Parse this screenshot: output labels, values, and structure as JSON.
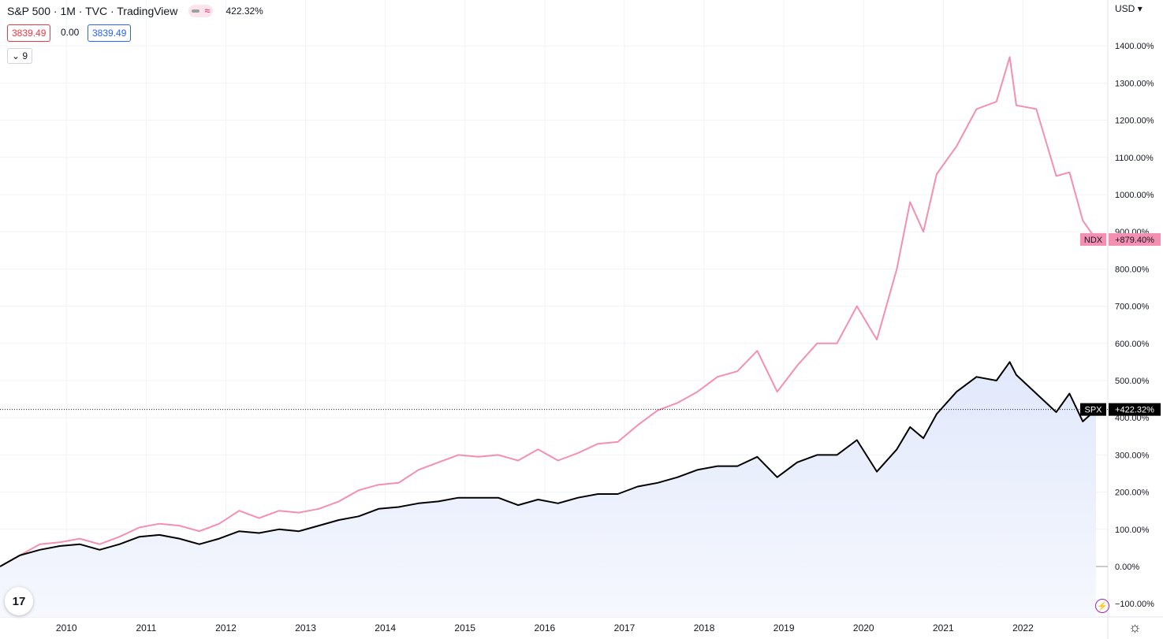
{
  "header": {
    "title": "S&P 500 · 1M · TVC · TradingView",
    "percent": "422.32%"
  },
  "prices": {
    "sell": "3839.49",
    "change": "0.00",
    "buy": "3839.49"
  },
  "indicators": {
    "count": "9"
  },
  "axis": {
    "currency": "USD",
    "currency_arrow": "▾"
  },
  "icons": {
    "logo": "tv-logo-icon",
    "bolt": "bolt-icon",
    "settings": "gear-icon",
    "collapse": "chevron-down-icon",
    "compare": "wave-icon"
  },
  "labels": {
    "ndx_tag": "NDX",
    "ndx_value": "+879.40%",
    "spx_tag": "SPX",
    "spx_value": "+422.32%"
  },
  "colors": {
    "ndx": "#f48fb1",
    "ndx_label_bg": "#f48fb1",
    "spx": "#000000",
    "area": "#e3eafc",
    "grid": "#f0f3fa",
    "zero": "#9598a1"
  },
  "chart_data": {
    "type": "line",
    "x_range": [
      "2009-03",
      "2022-12"
    ],
    "ylim": [
      -120,
      1510
    ],
    "y_unit": "%",
    "grid": true,
    "y_ticks": [
      "1400.00%",
      "1300.00%",
      "1200.00%",
      "1100.00%",
      "1000.00%",
      "900.00%",
      "800.00%",
      "700.00%",
      "600.00%",
      "500.00%",
      "400.00%",
      "300.00%",
      "200.00%",
      "100.00%",
      "0.00%",
      "−100.00%"
    ],
    "y_tick_values": [
      1400,
      1300,
      1200,
      1100,
      1000,
      900,
      800,
      700,
      600,
      500,
      400,
      300,
      200,
      100,
      0,
      -100
    ],
    "x_ticks": [
      "2010",
      "2011",
      "2012",
      "2013",
      "2014",
      "2015",
      "2016",
      "2017",
      "2018",
      "2019",
      "2020",
      "2021",
      "2022"
    ],
    "series": [
      {
        "name": "NDX",
        "x": [
          "2009-03",
          "2009-06",
          "2009-09",
          "2009-12",
          "2010-03",
          "2010-06",
          "2010-09",
          "2010-12",
          "2011-03",
          "2011-06",
          "2011-09",
          "2011-12",
          "2012-03",
          "2012-06",
          "2012-09",
          "2012-12",
          "2013-03",
          "2013-06",
          "2013-09",
          "2013-12",
          "2014-03",
          "2014-06",
          "2014-09",
          "2014-12",
          "2015-03",
          "2015-06",
          "2015-09",
          "2015-12",
          "2016-03",
          "2016-06",
          "2016-09",
          "2016-12",
          "2017-03",
          "2017-06",
          "2017-09",
          "2017-12",
          "2018-03",
          "2018-06",
          "2018-09",
          "2018-12",
          "2019-03",
          "2019-06",
          "2019-09",
          "2019-12",
          "2020-03",
          "2020-06",
          "2020-08",
          "2020-10",
          "2020-12",
          "2021-03",
          "2021-06",
          "2021-09",
          "2021-11",
          "2021-12",
          "2022-03",
          "2022-06",
          "2022-08",
          "2022-10",
          "2022-12"
        ],
        "values": [
          0,
          30,
          60,
          65,
          75,
          60,
          80,
          105,
          115,
          110,
          95,
          115,
          150,
          130,
          150,
          145,
          155,
          175,
          205,
          220,
          225,
          260,
          280,
          300,
          295,
          300,
          285,
          315,
          285,
          305,
          330,
          335,
          380,
          420,
          440,
          470,
          510,
          525,
          580,
          470,
          540,
          600,
          600,
          700,
          610,
          800,
          980,
          900,
          1055,
          1130,
          1230,
          1250,
          1370,
          1240,
          1230,
          1050,
          1060,
          930,
          879.4
        ]
      },
      {
        "name": "SPX",
        "x": [
          "2009-03",
          "2009-06",
          "2009-09",
          "2009-12",
          "2010-03",
          "2010-06",
          "2010-09",
          "2010-12",
          "2011-03",
          "2011-06",
          "2011-09",
          "2011-12",
          "2012-03",
          "2012-06",
          "2012-09",
          "2012-12",
          "2013-03",
          "2013-06",
          "2013-09",
          "2013-12",
          "2014-03",
          "2014-06",
          "2014-09",
          "2014-12",
          "2015-03",
          "2015-06",
          "2015-09",
          "2015-12",
          "2016-03",
          "2016-06",
          "2016-09",
          "2016-12",
          "2017-03",
          "2017-06",
          "2017-09",
          "2017-12",
          "2018-03",
          "2018-06",
          "2018-09",
          "2018-12",
          "2019-03",
          "2019-06",
          "2019-09",
          "2019-12",
          "2020-03",
          "2020-06",
          "2020-08",
          "2020-10",
          "2020-12",
          "2021-03",
          "2021-06",
          "2021-09",
          "2021-11",
          "2021-12",
          "2022-03",
          "2022-06",
          "2022-08",
          "2022-10",
          "2022-12"
        ],
        "values": [
          0,
          30,
          45,
          55,
          60,
          45,
          60,
          80,
          85,
          75,
          60,
          75,
          95,
          90,
          100,
          95,
          110,
          125,
          135,
          155,
          160,
          170,
          175,
          185,
          185,
          185,
          165,
          180,
          170,
          185,
          195,
          195,
          215,
          225,
          240,
          260,
          270,
          270,
          295,
          240,
          280,
          300,
          300,
          340,
          255,
          315,
          375,
          345,
          410,
          470,
          510,
          500,
          550,
          515,
          465,
          415,
          465,
          390,
          422.32
        ]
      }
    ]
  }
}
